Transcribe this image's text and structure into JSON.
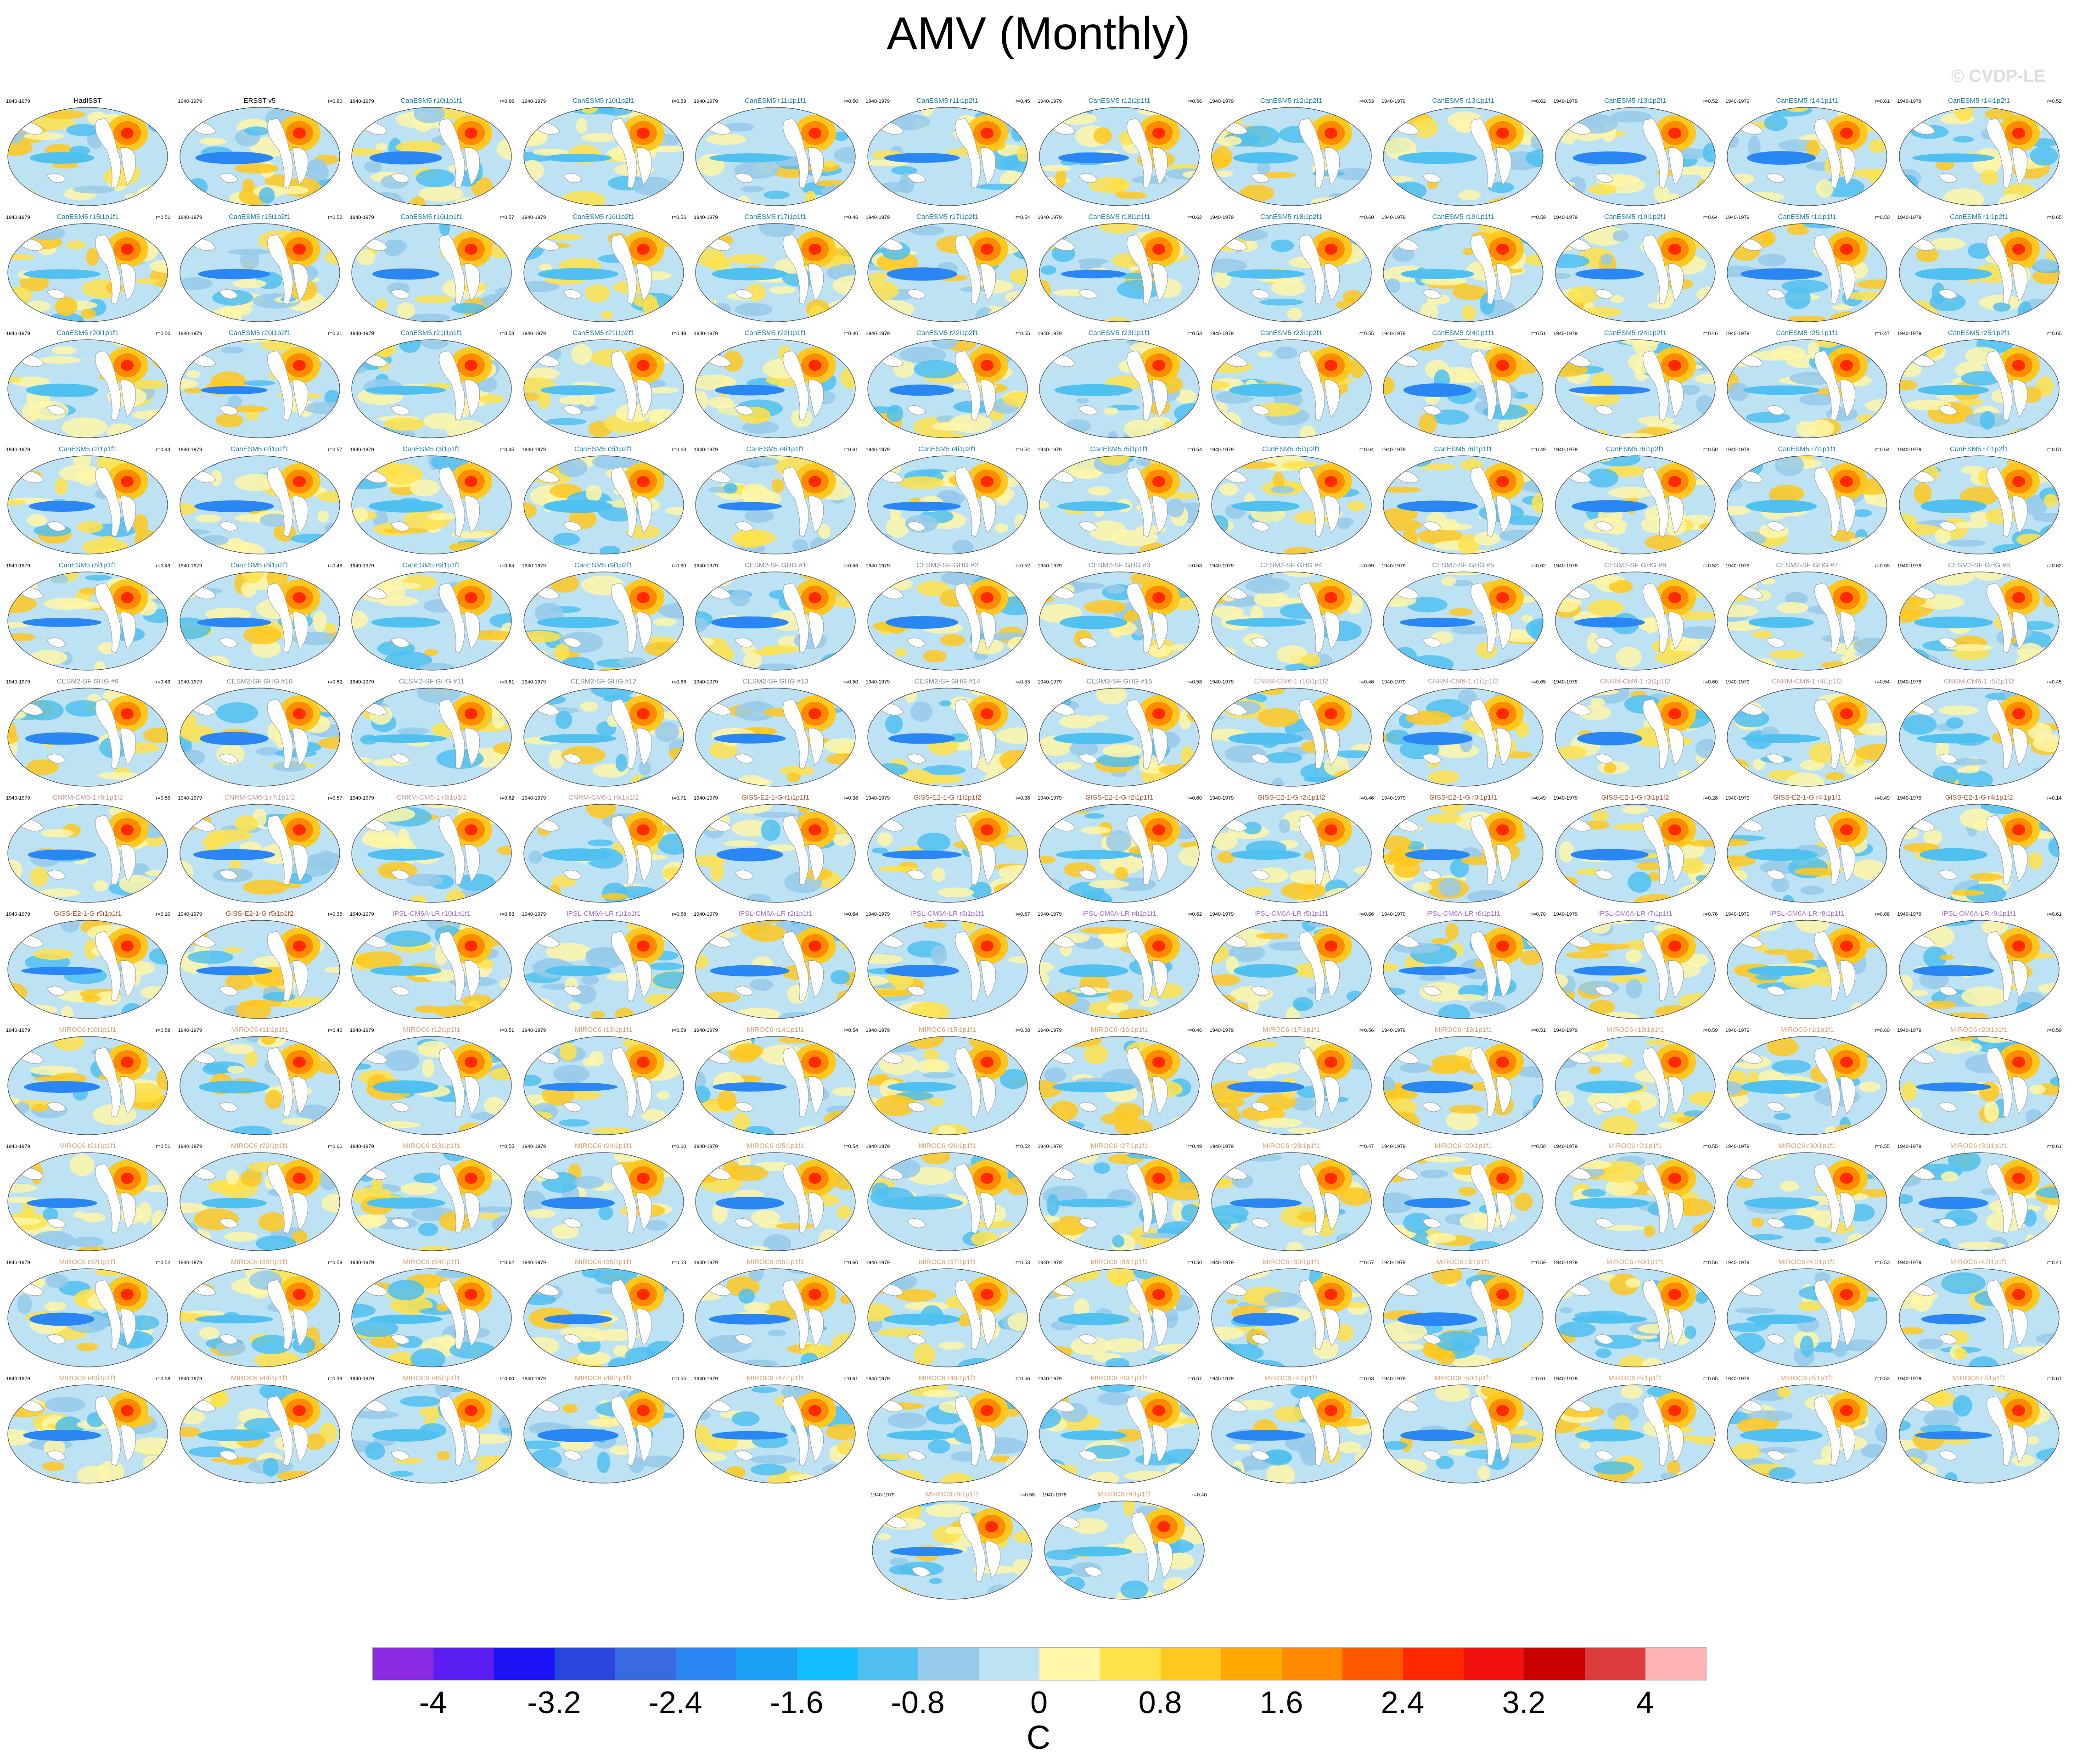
{
  "title": "AMV (Monthly)",
  "watermark": "© CVDP-LE",
  "panel_period": "1940-1979",
  "panels": [
    {
      "name": "HadISST",
      "r": "",
      "color": "#000000"
    },
    {
      "name": "ERSST v5",
      "r": "r=0.80",
      "color": "#000000"
    },
    {
      "name": "CanESM5 r10i1p1f1",
      "r": "r=0.66",
      "color": "#1a7fa8"
    },
    {
      "name": "CanESM5 r10i1p2f1",
      "r": "r=0.59",
      "color": "#1a7fa8"
    },
    {
      "name": "CanESM5 r11i1p1f1",
      "r": "r=0.50",
      "color": "#1a7fa8"
    },
    {
      "name": "CanESM5 r11i1p2f1",
      "r": "r=0.45",
      "color": "#1a7fa8"
    },
    {
      "name": "CanESM5 r12i1p1f1",
      "r": "r=0.56",
      "color": "#1a7fa8"
    },
    {
      "name": "CanESM5 r12i1p2f1",
      "r": "r=0.53",
      "color": "#1a7fa8"
    },
    {
      "name": "CanESM5 r13i1p1f1",
      "r": "r=0.62",
      "color": "#1a7fa8"
    },
    {
      "name": "CanESM5 r13i1p2f1",
      "r": "r=0.52",
      "color": "#1a7fa8"
    },
    {
      "name": "CanESM5 r14i1p1f1",
      "r": "r=0.61",
      "color": "#1a7fa8"
    },
    {
      "name": "CanESM5 r14i1p2f1",
      "r": "r=0.52",
      "color": "#1a7fa8"
    },
    {
      "name": "CanESM5 r15i1p1f1",
      "r": "r=0.51",
      "color": "#1a7fa8"
    },
    {
      "name": "CanESM5 r15i1p2f1",
      "r": "r=0.52",
      "color": "#1a7fa8"
    },
    {
      "name": "CanESM5 r16i1p1f1",
      "r": "r=0.57",
      "color": "#1a7fa8"
    },
    {
      "name": "CanESM5 r16i1p2f1",
      "r": "r=0.56",
      "color": "#1a7fa8"
    },
    {
      "name": "CanESM5 r17i1p1f1",
      "r": "r=0.46",
      "color": "#1a7fa8"
    },
    {
      "name": "CanESM5 r17i1p2f1",
      "r": "r=0.54",
      "color": "#1a7fa8"
    },
    {
      "name": "CanESM5 r18i1p1f1",
      "r": "r=0.62",
      "color": "#1a7fa8"
    },
    {
      "name": "CanESM5 r18i1p2f1",
      "r": "r=0.60",
      "color": "#1a7fa8"
    },
    {
      "name": "CanESM5 r19i1p1f1",
      "r": "r=0.59",
      "color": "#1a7fa8"
    },
    {
      "name": "CanESM5 r19i1p2f1",
      "r": "r=0.64",
      "color": "#1a7fa8"
    },
    {
      "name": "CanESM5 r1i1p1f1",
      "r": "r=0.50",
      "color": "#1a7fa8"
    },
    {
      "name": "CanESM5 r1i1p2f1",
      "r": "r=0.65",
      "color": "#1a7fa8"
    },
    {
      "name": "CanESM5 r20i1p1f1",
      "r": "r=0.50",
      "color": "#1a7fa8"
    },
    {
      "name": "CanESM5 r20i1p2f1",
      "r": "r=0.31",
      "color": "#1a7fa8"
    },
    {
      "name": "CanESM5 r21i1p1f1",
      "r": "r=0.53",
      "color": "#1a7fa8"
    },
    {
      "name": "CanESM5 r21i1p2f1",
      "r": "r=0.49",
      "color": "#1a7fa8"
    },
    {
      "name": "CanESM5 r22i1p1f1",
      "r": "r=0.40",
      "color": "#1a7fa8"
    },
    {
      "name": "CanESM5 r22i1p2f1",
      "r": "r=0.55",
      "color": "#1a7fa8"
    },
    {
      "name": "CanESM5 r23i1p1f1",
      "r": "r=0.53",
      "color": "#1a7fa8"
    },
    {
      "name": "CanESM5 r23i1p2f1",
      "r": "r=0.55",
      "color": "#1a7fa8"
    },
    {
      "name": "CanESM5 r24i1p1f1",
      "r": "r=0.51",
      "color": "#1a7fa8"
    },
    {
      "name": "CanESM5 r24i1p2f1",
      "r": "r=0.46",
      "color": "#1a7fa8"
    },
    {
      "name": "CanESM5 r25i1p1f1",
      "r": "r=0.47",
      "color": "#1a7fa8"
    },
    {
      "name": "CanESM5 r25i1p2f1",
      "r": "r=0.65",
      "color": "#1a7fa8"
    },
    {
      "name": "CanESM5 r2i1p1f1",
      "r": "r=0.43",
      "color": "#1a7fa8"
    },
    {
      "name": "CanESM5 r2i1p2f1",
      "r": "r=0.57",
      "color": "#1a7fa8"
    },
    {
      "name": "CanESM5 r3i1p1f1",
      "r": "r=0.45",
      "color": "#1a7fa8"
    },
    {
      "name": "CanESM5 r3i1p2f1",
      "r": "r=0.63",
      "color": "#1a7fa8"
    },
    {
      "name": "CanESM5 r4i1p1f1",
      "r": "r=0.61",
      "color": "#1a7fa8"
    },
    {
      "name": "CanESM5 r4i1p2f1",
      "r": "r=0.54",
      "color": "#1a7fa8"
    },
    {
      "name": "CanESM5 r5i1p1f1",
      "r": "r=0.54",
      "color": "#1a7fa8"
    },
    {
      "name": "CanESM5 r5i1p2f1",
      "r": "r=0.64",
      "color": "#1a7fa8"
    },
    {
      "name": "CanESM5 r6i1p1f1",
      "r": "r=0.49",
      "color": "#1a7fa8"
    },
    {
      "name": "CanESM5 r6i1p2f1",
      "r": "r=0.50",
      "color": "#1a7fa8"
    },
    {
      "name": "CanESM5 r7i1p1f1",
      "r": "r=0.64",
      "color": "#1a7fa8"
    },
    {
      "name": "CanESM5 r7i1p2f1",
      "r": "r=0.51",
      "color": "#1a7fa8"
    },
    {
      "name": "CanESM5 r8i1p1f1",
      "r": "r=0.43",
      "color": "#1a7fa8"
    },
    {
      "name": "CanESM5 r8i1p2f1",
      "r": "r=0.48",
      "color": "#1a7fa8"
    },
    {
      "name": "CanESM5 r9i1p1f1",
      "r": "r=0.64",
      "color": "#1a7fa8"
    },
    {
      "name": "CanESM5 r9i1p2f1",
      "r": "r=0.60",
      "color": "#1a7fa8"
    },
    {
      "name": "CESM2-SF GHG #1",
      "r": "r=0.56",
      "color": "#7b8a9e"
    },
    {
      "name": "CESM2-SF GHG #2",
      "r": "r=0.52",
      "color": "#7b8a9e"
    },
    {
      "name": "CESM2-SF GHG #3",
      "r": "r=0.58",
      "color": "#7b8a9e"
    },
    {
      "name": "CESM2-SF GHG #4",
      "r": "r=0.69",
      "color": "#7b8a9e"
    },
    {
      "name": "CESM2-SF GHG #5",
      "r": "r=0.62",
      "color": "#7b8a9e"
    },
    {
      "name": "CESM2-SF GHG #6",
      "r": "r=0.52",
      "color": "#7b8a9e"
    },
    {
      "name": "CESM2-SF GHG #7",
      "r": "r=0.55",
      "color": "#7b8a9e"
    },
    {
      "name": "CESM2-SF GHG #8",
      "r": "r=0.62",
      "color": "#7b8a9e"
    },
    {
      "name": "CESM2-SF GHG #9",
      "r": "r=0.49",
      "color": "#7b8a9e"
    },
    {
      "name": "CESM2-SF GHG #10",
      "r": "r=0.62",
      "color": "#7b8a9e"
    },
    {
      "name": "CESM2-SF GHG #11",
      "r": "r=0.61",
      "color": "#7b8a9e"
    },
    {
      "name": "CESM2-SF GHG #12",
      "r": "r=0.66",
      "color": "#7b8a9e"
    },
    {
      "name": "CESM2-SF GHG #13",
      "r": "r=0.50",
      "color": "#7b8a9e"
    },
    {
      "name": "CESM2-SF GHG #14",
      "r": "r=0.53",
      "color": "#7b8a9e"
    },
    {
      "name": "CESM2-SF GHG #15",
      "r": "r=0.58",
      "color": "#7b8a9e"
    },
    {
      "name": "CNRM-CM6-1 r10i1p1f2",
      "r": "r=0.46",
      "color": "#c49a9a"
    },
    {
      "name": "CNRM-CM6-1 r1i1p1f2",
      "r": "r=0.65",
      "color": "#c49a9a"
    },
    {
      "name": "CNRM-CM6-1 r3i1p1f2",
      "r": "r=0.60",
      "color": "#c49a9a"
    },
    {
      "name": "CNRM-CM6-1 r4i1p1f2",
      "r": "r=0.54",
      "color": "#c49a9a"
    },
    {
      "name": "CNRM-CM6-1 r5i1p1f2",
      "r": "r=0.45",
      "color": "#c49a9a"
    },
    {
      "name": "CNRM-CM6-1 r6i1p1f2",
      "r": "r=0.59",
      "color": "#c49a9a"
    },
    {
      "name": "CNRM-CM6-1 r7i1p1f2",
      "r": "r=0.57",
      "color": "#c49a9a"
    },
    {
      "name": "CNRM-CM6-1 r8i1p1f2",
      "r": "r=0.62",
      "color": "#c49a9a"
    },
    {
      "name": "CNRM-CM6-1 r9i1p1f2",
      "r": "r=0.71",
      "color": "#c49a9a"
    },
    {
      "name": "GISS-E2-1-G r1i1p1f1",
      "r": "r=0.38",
      "color": "#a0522d"
    },
    {
      "name": "GISS-E2-1-G r1i1p1f2",
      "r": "r=0.38",
      "color": "#a0522d"
    },
    {
      "name": "GISS-E2-1-G r2i1p1f1",
      "r": "r=0.60",
      "color": "#a0522d"
    },
    {
      "name": "GISS-E2-1-G r2i1p1f2",
      "r": "r=0.46",
      "color": "#a0522d"
    },
    {
      "name": "GISS-E2-1-G r3i1p1f1",
      "r": "r=0.49",
      "color": "#a0522d"
    },
    {
      "name": "GISS-E2-1-G r3i1p1f2",
      "r": "r=0.28",
      "color": "#a0522d"
    },
    {
      "name": "GISS-E2-1-G r4i1p1f1",
      "r": "r=0.49",
      "color": "#a0522d"
    },
    {
      "name": "GISS-E2-1-G r4i1p1f2",
      "r": "r=0.14",
      "color": "#a0522d"
    },
    {
      "name": "GISS-E2-1-G r5i1p1f1",
      "r": "r=0.10",
      "color": "#a0522d"
    },
    {
      "name": "GISS-E2-1-G r5i1p1f2",
      "r": "r=0.35",
      "color": "#a0522d"
    },
    {
      "name": "IPSL-CM6A-LR r10i1p1f1",
      "r": "r=0.63",
      "color": "#a070c8"
    },
    {
      "name": "IPSL-CM6A-LR r1i1p1f1",
      "r": "r=0.68",
      "color": "#a070c8"
    },
    {
      "name": "IPSL-CM6A-LR r2i1p1f1",
      "r": "r=0.64",
      "color": "#a070c8"
    },
    {
      "name": "IPSL-CM6A-LR r3i1p1f1",
      "r": "r=0.57",
      "color": "#a070c8"
    },
    {
      "name": "IPSL-CM6A-LR r4i1p1f1",
      "r": "r=0.62",
      "color": "#a070c8"
    },
    {
      "name": "IPSL-CM6A-LR r5i1p1f1",
      "r": "r=0.66",
      "color": "#a070c8"
    },
    {
      "name": "IPSL-CM6A-LR r6i1p1f1",
      "r": "r=0.70",
      "color": "#a070c8"
    },
    {
      "name": "IPSL-CM6A-LR r7i1p1f1",
      "r": "r=0.76",
      "color": "#a070c8"
    },
    {
      "name": "IPSL-CM6A-LR r8i1p1f1",
      "r": "r=0.68",
      "color": "#a070c8"
    },
    {
      "name": "IPSL-CM6A-LR r9i1p1f1",
      "r": "r=0.61",
      "color": "#a070c8"
    },
    {
      "name": "MIROC6 r10i1p1f1",
      "r": "r=0.58",
      "color": "#d8a070"
    },
    {
      "name": "MIROC6 r11i1p1f1",
      "r": "r=0.46",
      "color": "#d8a070"
    },
    {
      "name": "MIROC6 r12i1p1f1",
      "r": "r=0.51",
      "color": "#d8a070"
    },
    {
      "name": "MIROC6 r13i1p1f1",
      "r": "r=0.59",
      "color": "#d8a070"
    },
    {
      "name": "MIROC6 r14i1p1f1",
      "r": "r=0.54",
      "color": "#d8a070"
    },
    {
      "name": "MIROC6 r15i1p1f1",
      "r": "r=0.58",
      "color": "#d8a070"
    },
    {
      "name": "MIROC6 r16i1p1f1",
      "r": "r=0.46",
      "color": "#d8a070"
    },
    {
      "name": "MIROC6 r17i1p1f1",
      "r": "r=0.56",
      "color": "#d8a070"
    },
    {
      "name": "MIROC6 r18i1p1f1",
      "r": "r=0.51",
      "color": "#d8a070"
    },
    {
      "name": "MIROC6 r19i1p1f1",
      "r": "r=0.59",
      "color": "#d8a070"
    },
    {
      "name": "MIROC6 r1i1p1f1",
      "r": "r=0.60",
      "color": "#d8a070"
    },
    {
      "name": "MIROC6 r20i1p1f1",
      "r": "r=0.59",
      "color": "#d8a070"
    },
    {
      "name": "MIROC6 r21i1p1f1",
      "r": "r=0.51",
      "color": "#d8a070"
    },
    {
      "name": "MIROC6 r22i1p1f1",
      "r": "r=0.60",
      "color": "#d8a070"
    },
    {
      "name": "MIROC6 r23i1p1f1",
      "r": "r=0.55",
      "color": "#d8a070"
    },
    {
      "name": "MIROC6 r24i1p1f1",
      "r": "r=0.60",
      "color": "#d8a070"
    },
    {
      "name": "MIROC6 r25i1p1f1",
      "r": "r=0.54",
      "color": "#d8a070"
    },
    {
      "name": "MIROC6 r26i1p1f1",
      "r": "r=0.52",
      "color": "#d8a070"
    },
    {
      "name": "MIROC6 r27i1p1f1",
      "r": "r=0.49",
      "color": "#d8a070"
    },
    {
      "name": "MIROC6 r28i1p1f1",
      "r": "r=0.47",
      "color": "#d8a070"
    },
    {
      "name": "MIROC6 r29i1p1f1",
      "r": "r=0.50",
      "color": "#d8a070"
    },
    {
      "name": "MIROC6 r2i1p1f1",
      "r": "r=0.55",
      "color": "#d8a070"
    },
    {
      "name": "MIROC6 r30i1p1f1",
      "r": "r=0.55",
      "color": "#d8a070"
    },
    {
      "name": "MIROC6 r31i1p1f1",
      "r": "r=0.61",
      "color": "#d8a070"
    },
    {
      "name": "MIROC6 r32i1p1f1",
      "r": "r=0.52",
      "color": "#d8a070"
    },
    {
      "name": "MIROC6 r33i1p1f1",
      "r": "r=0.59",
      "color": "#d8a070"
    },
    {
      "name": "MIROC6 r34i1p1f1",
      "r": "r=0.62",
      "color": "#d8a070"
    },
    {
      "name": "MIROC6 r35i1p1f1",
      "r": "r=0.58",
      "color": "#d8a070"
    },
    {
      "name": "MIROC6 r36i1p1f1",
      "r": "r=0.60",
      "color": "#d8a070"
    },
    {
      "name": "MIROC6 r37i1p1f1",
      "r": "r=0.53",
      "color": "#d8a070"
    },
    {
      "name": "MIROC6 r38i1p1f1",
      "r": "r=0.50",
      "color": "#d8a070"
    },
    {
      "name": "MIROC6 r39i1p1f1",
      "r": "r=0.57",
      "color": "#d8a070"
    },
    {
      "name": "MIROC6 r3i1p1f1",
      "r": "r=0.59",
      "color": "#d8a070"
    },
    {
      "name": "MIROC6 r40i1p1f1",
      "r": "r=0.56",
      "color": "#d8a070"
    },
    {
      "name": "MIROC6 r41i1p1f1",
      "r": "r=0.53",
      "color": "#d8a070"
    },
    {
      "name": "MIROC6 r42i1p1f1",
      "r": "r=0.41",
      "color": "#d8a070"
    },
    {
      "name": "MIROC6 r43i1p1f1",
      "r": "r=0.58",
      "color": "#d8a070"
    },
    {
      "name": "MIROC6 r44i1p1f1",
      "r": "r=0.39",
      "color": "#d8a070"
    },
    {
      "name": "MIROC6 r45i1p1f1",
      "r": "r=0.60",
      "color": "#d8a070"
    },
    {
      "name": "MIROC6 r46i1p1f1",
      "r": "r=0.55",
      "color": "#d8a070"
    },
    {
      "name": "MIROC6 r47i1p1f1",
      "r": "r=0.61",
      "color": "#d8a070"
    },
    {
      "name": "MIROC6 r48i1p1f1",
      "r": "r=0.56",
      "color": "#d8a070"
    },
    {
      "name": "MIROC6 r49i1p1f1",
      "r": "r=0.57",
      "color": "#d8a070"
    },
    {
      "name": "MIROC6 r4i1p1f1",
      "r": "r=0.63",
      "color": "#d8a070"
    },
    {
      "name": "MIROC6 r50i1p1f1",
      "r": "r=0.61",
      "color": "#d8a070"
    },
    {
      "name": "MIROC6 r5i1p1f1",
      "r": "r=0.65",
      "color": "#d8a070"
    },
    {
      "name": "MIROC6 r6i1p1f1",
      "r": "r=0.53",
      "color": "#d8a070"
    },
    {
      "name": "MIROC6 r7i1p1f1",
      "r": "r=0.61",
      "color": "#d8a070"
    },
    {
      "name": "MIROC6 r8i1p1f1",
      "r": "r=0.58",
      "color": "#d8a070"
    },
    {
      "name": "MIROC6 r9i1p1f1",
      "r": "r=0.40",
      "color": "#d8a070"
    }
  ],
  "colorbar": {
    "colors": [
      "#8a2be2",
      "#5a1ef0",
      "#1a14f5",
      "#2a46dc",
      "#3a6ae0",
      "#2a86f2",
      "#1aa0f5",
      "#12beff",
      "#50c0f0",
      "#96caea",
      "#bde2f4",
      "#fff6a8",
      "#ffe24a",
      "#ffc81e",
      "#ffa800",
      "#ff8a00",
      "#ff5a00",
      "#ff2800",
      "#f01010",
      "#c80000",
      "#dc3c3c",
      "#ffb4b4"
    ],
    "tick_labels": [
      "-4",
      "-3.2",
      "-2.4",
      "-1.6",
      "-0.8",
      "0",
      "0.8",
      "1.6",
      "2.4",
      "3.2",
      "4"
    ],
    "unit": "C"
  }
}
